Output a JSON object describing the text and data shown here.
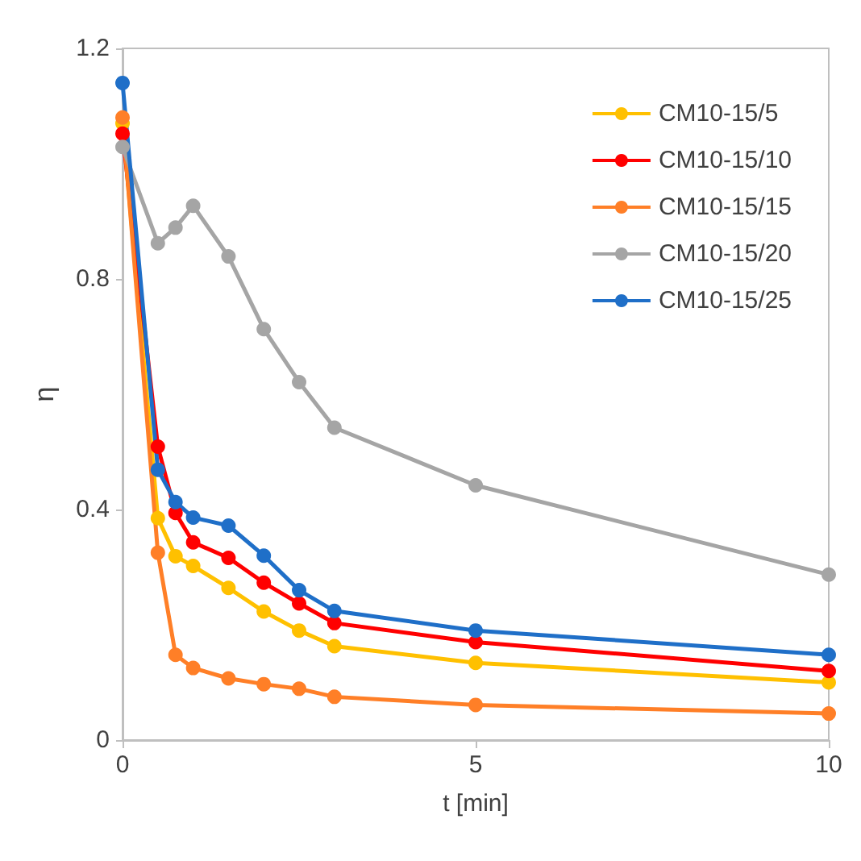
{
  "chart_data": {
    "type": "line",
    "xlabel": "t [min]",
    "ylabel": "η",
    "x": [
      0,
      0.5,
      0.75,
      1,
      1.5,
      2,
      2.5,
      3,
      5,
      10
    ],
    "series": [
      {
        "name": "CM10-15/5",
        "color": "#ffc000",
        "values": [
          1.07,
          0.385,
          0.319,
          0.302,
          0.264,
          0.223,
          0.19,
          0.163,
          0.134,
          0.1
        ]
      },
      {
        "name": "CM10-15/10",
        "color": "#ff0000",
        "values": [
          1.052,
          0.509,
          0.394,
          0.343,
          0.316,
          0.273,
          0.237,
          0.203,
          0.17,
          0.12
        ]
      },
      {
        "name": "CM10-15/15",
        "color": "#ff7f27",
        "values": [
          1.08,
          0.325,
          0.148,
          0.125,
          0.107,
          0.097,
          0.089,
          0.075,
          0.061,
          0.046
        ]
      },
      {
        "name": "CM10-15/20",
        "color": "#a5a5a5",
        "values": [
          1.029,
          0.862,
          0.889,
          0.927,
          0.839,
          0.713,
          0.621,
          0.542,
          0.442,
          0.287
        ]
      },
      {
        "name": "CM10-15/25",
        "color": "#1f6fc8",
        "values": [
          1.14,
          0.469,
          0.413,
          0.386,
          0.372,
          0.32,
          0.26,
          0.224,
          0.19,
          0.148
        ]
      }
    ],
    "xlim": [
      0,
      10
    ],
    "xticks": [
      0,
      5,
      10
    ],
    "ylim": [
      0,
      1.2
    ],
    "yticks": [
      0,
      0.4,
      0.8,
      1.2
    ],
    "grid": false,
    "legend": "top right",
    "marker": "circle",
    "line_style": "solid"
  }
}
